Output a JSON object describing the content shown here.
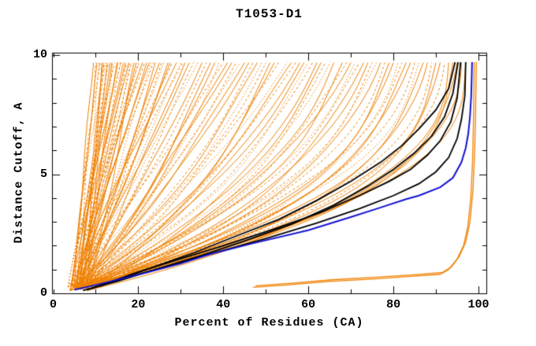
{
  "chart_data": {
    "type": "line",
    "title": "T1053-D1",
    "xlabel": "Percent of Residues (CA)",
    "ylabel": "Distance Cutoff, A",
    "x_axis": {
      "min": 0,
      "max": 100,
      "major_step": 20,
      "minor_step": 10,
      "tick_values": [
        0,
        20,
        40,
        60,
        80,
        100
      ],
      "tick_labels": [
        "0",
        "20",
        "40",
        "60",
        "80",
        "100"
      ]
    },
    "y_axis": {
      "min": 0,
      "max": 10,
      "major_step": 5,
      "minor_step": 1,
      "tick_values": [
        0,
        5,
        10
      ],
      "tick_labels": [
        "0",
        "5",
        "10"
      ]
    },
    "colors": {
      "ensemble": "#F08000",
      "highlight_black": "#000000",
      "highlight_blue": "#1414D2",
      "axis": "#000000",
      "background": "#ffffff"
    },
    "legend": "none",
    "grid": false,
    "ensemble": {
      "description": "per-model GDT curves, percent of CA residues under distance cutoff",
      "line_count": 110,
      "models": [
        [
          9.5,
          4,
          0
        ],
        [
          10,
          6.5,
          1
        ],
        [
          10.3,
          5,
          0
        ],
        [
          10.8,
          7.5,
          2
        ],
        [
          11,
          4.5,
          1
        ],
        [
          11.4,
          8,
          0
        ],
        [
          11.8,
          5.5,
          0
        ],
        [
          12,
          7,
          1
        ],
        [
          12.3,
          3.5,
          2
        ],
        [
          12.7,
          6,
          0
        ],
        [
          13,
          4,
          1
        ],
        [
          13.4,
          6.5,
          0
        ],
        [
          13.8,
          5,
          0
        ],
        [
          14,
          7.5,
          2
        ],
        [
          14.5,
          4.5,
          1
        ],
        [
          15,
          8,
          0
        ],
        [
          15.2,
          5.5,
          0
        ],
        [
          15.8,
          7,
          1
        ],
        [
          16,
          3.5,
          2
        ],
        [
          16.5,
          6,
          0
        ],
        [
          17,
          4,
          0
        ],
        [
          17.3,
          6.5,
          1
        ],
        [
          17.8,
          5,
          0
        ],
        [
          18,
          7.5,
          2
        ],
        [
          18.4,
          4.5,
          1
        ],
        [
          19,
          8,
          0
        ],
        [
          19.5,
          5.5,
          0
        ],
        [
          20,
          7,
          1
        ],
        [
          20.3,
          3.5,
          2
        ],
        [
          21,
          6,
          0
        ],
        [
          21.5,
          4,
          1
        ],
        [
          22,
          6.5,
          0
        ],
        [
          22.6,
          5,
          0
        ],
        [
          23,
          7.5,
          2
        ],
        [
          23.5,
          4.5,
          1
        ],
        [
          24,
          8,
          0
        ],
        [
          25,
          5.5,
          0
        ],
        [
          25.5,
          7,
          1
        ],
        [
          26,
          3.5,
          2
        ],
        [
          27,
          6,
          0
        ],
        [
          27.5,
          4,
          0
        ],
        [
          28,
          6.5,
          1
        ],
        [
          29,
          5,
          0
        ],
        [
          30,
          7.5,
          2
        ],
        [
          30.5,
          4.5,
          1
        ],
        [
          31,
          8,
          0
        ],
        [
          32,
          5.5,
          0
        ],
        [
          33,
          7,
          1
        ],
        [
          34,
          3.5,
          2
        ],
        [
          35,
          6,
          0
        ],
        [
          36,
          4,
          1
        ],
        [
          37,
          6.5,
          0
        ],
        [
          38,
          5,
          0
        ],
        [
          39,
          7.5,
          2
        ],
        [
          40,
          4.5,
          1
        ],
        [
          41,
          8,
          0
        ],
        [
          42,
          5.5,
          0
        ],
        [
          43,
          7,
          1
        ],
        [
          44,
          3.5,
          2
        ],
        [
          45,
          6,
          0
        ],
        [
          46,
          4,
          0
        ],
        [
          47,
          6.5,
          1
        ],
        [
          48,
          5,
          0
        ],
        [
          49,
          7.5,
          2
        ],
        [
          50,
          4.5,
          1
        ],
        [
          51,
          8,
          0
        ],
        [
          52,
          5.5,
          0
        ],
        [
          53,
          7,
          1
        ],
        [
          55,
          3.5,
          2
        ],
        [
          56,
          6,
          0
        ],
        [
          57,
          4,
          1
        ],
        [
          58,
          6.5,
          0
        ],
        [
          59,
          5,
          0
        ],
        [
          60,
          7.5,
          2
        ],
        [
          61,
          4.5,
          1
        ],
        [
          62,
          8,
          0
        ],
        [
          63,
          5.5,
          0
        ],
        [
          64,
          7,
          1
        ],
        [
          65,
          3.5,
          2
        ],
        [
          66,
          6,
          0
        ],
        [
          68,
          4,
          0
        ],
        [
          69,
          6.5,
          1
        ],
        [
          70,
          5,
          0
        ],
        [
          71,
          7.5,
          2
        ],
        [
          72,
          4.5,
          1
        ],
        [
          73,
          8,
          0
        ],
        [
          74,
          5.5,
          0
        ],
        [
          75,
          7,
          1
        ],
        [
          76,
          3.5,
          2
        ],
        [
          77,
          6,
          0
        ],
        [
          78,
          4,
          1
        ],
        [
          79,
          6.5,
          0
        ],
        [
          80,
          5,
          0
        ],
        [
          81,
          7.5,
          2
        ],
        [
          82,
          4.5,
          1
        ],
        [
          83,
          8,
          0
        ],
        [
          84,
          5.5,
          0
        ],
        [
          85,
          7,
          1
        ],
        [
          86,
          3.5,
          2
        ],
        [
          87,
          6,
          0
        ],
        [
          88,
          4,
          0
        ],
        [
          89,
          6.5,
          1
        ],
        [
          90,
          5,
          0
        ],
        [
          91,
          7.5,
          0
        ],
        [
          92,
          4.5,
          1
        ],
        [
          93,
          8,
          0
        ],
        [
          94,
          5.5,
          0
        ],
        [
          95,
          7,
          0
        ],
        [
          96,
          4.5,
          0
        ],
        [
          97,
          6,
          0
        ]
      ]
    },
    "highlight_black_models": [
      [
        [
          8,
          0.15
        ],
        [
          18,
          0.7
        ],
        [
          28,
          1.2
        ],
        [
          38,
          1.7
        ],
        [
          50,
          2.3
        ],
        [
          62,
          2.95
        ],
        [
          72,
          3.55
        ],
        [
          80,
          4.1
        ],
        [
          86,
          4.6
        ],
        [
          90,
          5.1
        ],
        [
          93,
          5.7
        ],
        [
          95,
          6.5
        ],
        [
          96,
          7.3
        ],
        [
          96.8,
          8.3
        ],
        [
          97,
          9.7
        ]
      ],
      [
        [
          9,
          0.2
        ],
        [
          20,
          0.9
        ],
        [
          30,
          1.45
        ],
        [
          40,
          2.0
        ],
        [
          52,
          2.7
        ],
        [
          63,
          3.4
        ],
        [
          72,
          4.1
        ],
        [
          79,
          4.7
        ],
        [
          84,
          5.2
        ],
        [
          88,
          5.8
        ],
        [
          91,
          6.4
        ],
        [
          93.5,
          7.2
        ],
        [
          95,
          8.2
        ],
        [
          95.8,
          9.7
        ]
      ],
      [
        [
          7,
          0.12
        ],
        [
          15,
          0.5
        ],
        [
          25,
          1.05
        ],
        [
          35,
          1.6
        ],
        [
          45,
          2.2
        ],
        [
          56,
          2.9
        ],
        [
          66,
          3.7
        ],
        [
          74,
          4.5
        ],
        [
          80,
          5.2
        ],
        [
          85,
          5.9
        ],
        [
          89,
          6.6
        ],
        [
          92,
          7.4
        ],
        [
          94,
          8.4
        ],
        [
          95.2,
          9.7
        ]
      ],
      [
        [
          11,
          0.3
        ],
        [
          22,
          1.0
        ],
        [
          33,
          1.7
        ],
        [
          43,
          2.4
        ],
        [
          53,
          3.1
        ],
        [
          62,
          3.9
        ],
        [
          70,
          4.7
        ],
        [
          77,
          5.5
        ],
        [
          82,
          6.2
        ],
        [
          86,
          6.9
        ],
        [
          90,
          7.7
        ],
        [
          93,
          8.6
        ],
        [
          94.5,
          9.7
        ]
      ]
    ],
    "highlight_blue_model": [
      [
        5,
        0.15
      ],
      [
        10,
        0.35
      ],
      [
        22,
        0.87
      ],
      [
        30,
        1.25
      ],
      [
        37,
        1.65
      ],
      [
        47,
        2.1
      ],
      [
        60,
        2.65
      ],
      [
        70,
        3.2
      ],
      [
        77,
        3.6
      ],
      [
        83,
        3.95
      ],
      [
        86,
        4.1
      ],
      [
        91,
        4.45
      ],
      [
        94,
        4.85
      ],
      [
        96,
        5.5
      ],
      [
        97,
        6.1
      ],
      [
        97.6,
        6.7
      ],
      [
        98,
        7.4
      ],
      [
        98.3,
        8.3
      ],
      [
        98.5,
        9.7
      ]
    ],
    "outlier_models": [
      [
        [
          47,
          0.25
        ],
        [
          55,
          0.35
        ],
        [
          65,
          0.5
        ],
        [
          75,
          0.6
        ],
        [
          85,
          0.72
        ],
        [
          91,
          0.8
        ],
        [
          93,
          1.0
        ],
        [
          95,
          1.45
        ],
        [
          96.5,
          2.0
        ],
        [
          97.5,
          2.8
        ],
        [
          98.2,
          4.0
        ],
        [
          98.6,
          5.5
        ],
        [
          98.8,
          7.0
        ],
        [
          99,
          9.7
        ]
      ],
      [
        [
          47.6,
          0.32
        ],
        [
          55.6,
          0.42
        ],
        [
          65.6,
          0.57
        ],
        [
          75.6,
          0.67
        ],
        [
          85.6,
          0.79
        ],
        [
          91.6,
          0.88
        ],
        [
          93.6,
          1.1
        ],
        [
          95.5,
          1.55
        ],
        [
          97,
          2.15
        ],
        [
          98,
          3.0
        ],
        [
          98.7,
          4.3
        ],
        [
          99.1,
          5.9
        ],
        [
          99.3,
          7.4
        ],
        [
          99.5,
          9.7
        ]
      ]
    ]
  }
}
